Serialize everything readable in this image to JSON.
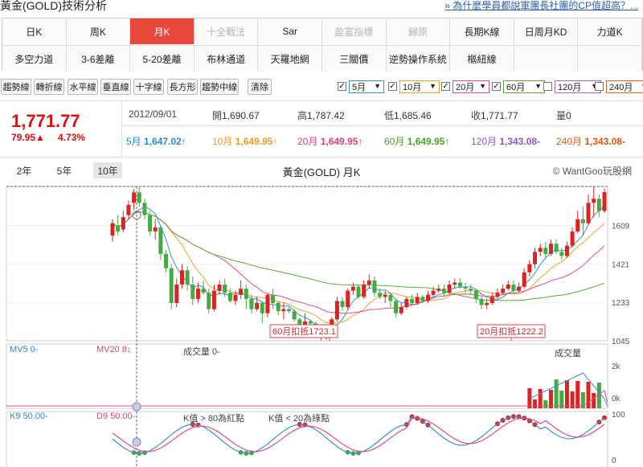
{
  "header": {
    "title": "黃金(GOLD)技術分析",
    "link": "» 為什麼學員都說軍團長社團的CP值超高？..."
  },
  "tabs": {
    "row1": [
      {
        "label": "日K",
        "state": "normal"
      },
      {
        "label": "周K",
        "state": "normal"
      },
      {
        "label": "月K",
        "state": "active"
      },
      {
        "label": "十全戰法",
        "state": "disabled"
      },
      {
        "label": "Sar",
        "state": "normal"
      },
      {
        "label": "盈富指標",
        "state": "disabled"
      },
      {
        "label": "歸原",
        "state": "disabled"
      },
      {
        "label": "長期K線",
        "state": "normal"
      },
      {
        "label": "日周月KD",
        "state": "normal"
      },
      {
        "label": "力道K",
        "state": "normal"
      }
    ],
    "row2": [
      {
        "label": "多空力道",
        "state": "normal"
      },
      {
        "label": "3-6差離",
        "state": "normal"
      },
      {
        "label": "5-20差離",
        "state": "normal"
      },
      {
        "label": "布林通道",
        "state": "normal"
      },
      {
        "label": "天羅地網",
        "state": "normal"
      },
      {
        "label": "三關價",
        "state": "normal"
      },
      {
        "label": "逆勢操作系統",
        "state": "normal"
      },
      {
        "label": "樞紐線",
        "state": "normal"
      },
      {
        "label": "",
        "state": "blank"
      },
      {
        "label": "",
        "state": "blank"
      }
    ]
  },
  "tools": [
    "趨勢線",
    "轉折線",
    "水平線",
    "垂直線",
    "十字線",
    "長方形",
    "趨勢中線",
    "清除"
  ],
  "ma_selectors": [
    {
      "label": "5月",
      "checked": true,
      "color": "#3a8fd6"
    },
    {
      "label": "10月",
      "checked": true,
      "color": "#f0a030"
    },
    {
      "label": "20月",
      "checked": true,
      "color": "#e0507a"
    },
    {
      "label": "60月",
      "checked": true,
      "color": "#5aaa3a"
    },
    {
      "label": "120月",
      "checked": false,
      "color": "#9a6ad0"
    },
    {
      "label": "240月",
      "checked": false,
      "color": "#e06a20"
    }
  ],
  "quote": {
    "price": "1,771.77",
    "change": "79.95▲",
    "percent": "4.73%",
    "date": "2012/09/01",
    "open_label": "開",
    "open": "1,690.67",
    "high_label": "高",
    "high": "1,787.42",
    "low_label": "低",
    "low": "1,685.46",
    "close_label": "收",
    "close": "1,771.77",
    "vol_label": "量",
    "vol": "0",
    "ma": [
      {
        "label": "5月",
        "value": "1,647.02↑",
        "color": "#2b87d0"
      },
      {
        "label": "10月",
        "value": "1,649.95↑",
        "color": "#f09a20"
      },
      {
        "label": "20月",
        "value": "1,649.95↑",
        "color": "#e0407a"
      },
      {
        "label": "60月",
        "value": "1,649.95↑",
        "color": "#4aa02a"
      },
      {
        "label": "120月",
        "value": "1,343.08-",
        "color": "#8a5ac0"
      },
      {
        "label": "240月",
        "value": "1,343.08-",
        "color": "#e05a10"
      }
    ]
  },
  "chart": {
    "ranges": [
      "2年",
      "5年",
      "10年"
    ],
    "active_range": "10年",
    "title": "黃金(GOLD) 月K",
    "credit": "© WantGoo玩股網",
    "yticks": [
      "1609",
      "1421",
      "1233",
      "1045"
    ],
    "annot1": "60月扣抵1723.1",
    "annot2": "20月扣抵1222.2"
  },
  "volume_panel": {
    "mv5": "MV5 0-",
    "mv20": "MV20 8↓",
    "vol_text": "成交量 0-",
    "vol_title": "成交量",
    "yticks": [
      "2k",
      "0k"
    ]
  },
  "kd_panel": {
    "k9": "K9 50.00-",
    "d9": "D9 50.00-",
    "rule1": "K值 > 80為紅點",
    "rule2": "K值 < 20為綠點",
    "yticks": [
      "100",
      "0"
    ]
  },
  "chart_data": {
    "type": "candlestick",
    "title": "黃金(GOLD) 月K",
    "ylim": [
      1045,
      1800
    ],
    "candles": [
      {
        "o": 1560,
        "c": 1620,
        "h": 1640,
        "l": 1530
      },
      {
        "o": 1610,
        "c": 1580,
        "h": 1660,
        "l": 1560
      },
      {
        "o": 1590,
        "c": 1650,
        "h": 1680,
        "l": 1575
      },
      {
        "o": 1660,
        "c": 1710,
        "h": 1730,
        "l": 1640
      },
      {
        "o": 1720,
        "c": 1771,
        "h": 1787,
        "l": 1686
      },
      {
        "o": 1771,
        "c": 1720,
        "h": 1795,
        "l": 1700
      },
      {
        "o": 1720,
        "c": 1660,
        "h": 1740,
        "l": 1640
      },
      {
        "o": 1660,
        "c": 1580,
        "h": 1680,
        "l": 1560
      },
      {
        "o": 1580,
        "c": 1600,
        "h": 1640,
        "l": 1540
      },
      {
        "o": 1600,
        "c": 1470,
        "h": 1610,
        "l": 1440
      },
      {
        "o": 1470,
        "c": 1400,
        "h": 1490,
        "l": 1380
      },
      {
        "o": 1400,
        "c": 1230,
        "h": 1420,
        "l": 1200
      },
      {
        "o": 1230,
        "c": 1320,
        "h": 1350,
        "l": 1210
      },
      {
        "o": 1320,
        "c": 1390,
        "h": 1420,
        "l": 1300
      },
      {
        "o": 1390,
        "c": 1320,
        "h": 1410,
        "l": 1290
      },
      {
        "o": 1320,
        "c": 1250,
        "h": 1360,
        "l": 1220
      },
      {
        "o": 1250,
        "c": 1300,
        "h": 1330,
        "l": 1230
      },
      {
        "o": 1300,
        "c": 1280,
        "h": 1340,
        "l": 1270
      },
      {
        "o": 1280,
        "c": 1200,
        "h": 1300,
        "l": 1180
      },
      {
        "o": 1200,
        "c": 1290,
        "h": 1320,
        "l": 1190
      },
      {
        "o": 1290,
        "c": 1320,
        "h": 1340,
        "l": 1270
      },
      {
        "o": 1320,
        "c": 1280,
        "h": 1350,
        "l": 1260
      },
      {
        "o": 1280,
        "c": 1240,
        "h": 1300,
        "l": 1230
      },
      {
        "o": 1240,
        "c": 1270,
        "h": 1290,
        "l": 1220
      },
      {
        "o": 1270,
        "c": 1300,
        "h": 1340,
        "l": 1250
      },
      {
        "o": 1300,
        "c": 1250,
        "h": 1320,
        "l": 1200
      },
      {
        "o": 1250,
        "c": 1200,
        "h": 1270,
        "l": 1180
      },
      {
        "o": 1200,
        "c": 1230,
        "h": 1260,
        "l": 1190
      },
      {
        "o": 1230,
        "c": 1180,
        "h": 1240,
        "l": 1130
      },
      {
        "o": 1180,
        "c": 1270,
        "h": 1280,
        "l": 1160
      },
      {
        "o": 1270,
        "c": 1230,
        "h": 1300,
        "l": 1200
      },
      {
        "o": 1230,
        "c": 1190,
        "h": 1240,
        "l": 1170
      },
      {
        "o": 1190,
        "c": 1200,
        "h": 1230,
        "l": 1150
      },
      {
        "o": 1200,
        "c": 1190,
        "h": 1210,
        "l": 1180
      },
      {
        "o": 1190,
        "c": 1150,
        "h": 1200,
        "l": 1140
      },
      {
        "o": 1150,
        "c": 1120,
        "h": 1160,
        "l": 1110
      },
      {
        "o": 1120,
        "c": 1140,
        "h": 1180,
        "l": 1100
      },
      {
        "o": 1140,
        "c": 1130,
        "h": 1150,
        "l": 1090
      },
      {
        "o": 1130,
        "c": 1070,
        "h": 1140,
        "l": 1060
      },
      {
        "o": 1070,
        "c": 1060,
        "h": 1090,
        "l": 1045
      },
      {
        "o": 1060,
        "c": 1090,
        "h": 1100,
        "l": 1050
      },
      {
        "o": 1090,
        "c": 1150,
        "h": 1160,
        "l": 1070
      },
      {
        "o": 1150,
        "c": 1240,
        "h": 1260,
        "l": 1140
      },
      {
        "o": 1240,
        "c": 1210,
        "h": 1260,
        "l": 1190
      },
      {
        "o": 1210,
        "c": 1290,
        "h": 1300,
        "l": 1200
      },
      {
        "o": 1290,
        "c": 1310,
        "h": 1330,
        "l": 1270
      },
      {
        "o": 1310,
        "c": 1260,
        "h": 1320,
        "l": 1250
      },
      {
        "o": 1260,
        "c": 1320,
        "h": 1340,
        "l": 1250
      },
      {
        "o": 1320,
        "c": 1340,
        "h": 1370,
        "l": 1300
      },
      {
        "o": 1340,
        "c": 1280,
        "h": 1360,
        "l": 1260
      },
      {
        "o": 1280,
        "c": 1260,
        "h": 1300,
        "l": 1250
      },
      {
        "o": 1260,
        "c": 1270,
        "h": 1290,
        "l": 1230
      },
      {
        "o": 1270,
        "c": 1240,
        "h": 1280,
        "l": 1210
      },
      {
        "o": 1240,
        "c": 1180,
        "h": 1250,
        "l": 1160
      },
      {
        "o": 1180,
        "c": 1210,
        "h": 1230,
        "l": 1170
      },
      {
        "o": 1210,
        "c": 1250,
        "h": 1260,
        "l": 1200
      },
      {
        "o": 1250,
        "c": 1230,
        "h": 1270,
        "l": 1220
      },
      {
        "o": 1230,
        "c": 1260,
        "h": 1280,
        "l": 1220
      },
      {
        "o": 1260,
        "c": 1240,
        "h": 1270,
        "l": 1230
      },
      {
        "o": 1240,
        "c": 1270,
        "h": 1290,
        "l": 1230
      },
      {
        "o": 1270,
        "c": 1290,
        "h": 1310,
        "l": 1260
      },
      {
        "o": 1290,
        "c": 1300,
        "h": 1320,
        "l": 1280
      },
      {
        "o": 1300,
        "c": 1280,
        "h": 1320,
        "l": 1260
      },
      {
        "o": 1280,
        "c": 1320,
        "h": 1340,
        "l": 1270
      },
      {
        "o": 1320,
        "c": 1330,
        "h": 1350,
        "l": 1300
      },
      {
        "o": 1330,
        "c": 1310,
        "h": 1350,
        "l": 1300
      },
      {
        "o": 1310,
        "c": 1300,
        "h": 1330,
        "l": 1280
      },
      {
        "o": 1300,
        "c": 1290,
        "h": 1320,
        "l": 1270
      },
      {
        "o": 1290,
        "c": 1250,
        "h": 1300,
        "l": 1230
      },
      {
        "o": 1250,
        "c": 1220,
        "h": 1260,
        "l": 1200
      },
      {
        "o": 1220,
        "c": 1230,
        "h": 1250,
        "l": 1200
      },
      {
        "o": 1230,
        "c": 1260,
        "h": 1280,
        "l": 1220
      },
      {
        "o": 1260,
        "c": 1280,
        "h": 1300,
        "l": 1250
      },
      {
        "o": 1280,
        "c": 1300,
        "h": 1320,
        "l": 1270
      },
      {
        "o": 1300,
        "c": 1320,
        "h": 1340,
        "l": 1290
      },
      {
        "o": 1320,
        "c": 1290,
        "h": 1340,
        "l": 1280
      },
      {
        "o": 1290,
        "c": 1310,
        "h": 1330,
        "l": 1280
      },
      {
        "o": 1310,
        "c": 1380,
        "h": 1400,
        "l": 1300
      },
      {
        "o": 1380,
        "c": 1420,
        "h": 1440,
        "l": 1360
      },
      {
        "o": 1420,
        "c": 1480,
        "h": 1500,
        "l": 1400
      },
      {
        "o": 1480,
        "c": 1500,
        "h": 1520,
        "l": 1460
      },
      {
        "o": 1500,
        "c": 1470,
        "h": 1530,
        "l": 1450
      },
      {
        "o": 1470,
        "c": 1520,
        "h": 1540,
        "l": 1460
      },
      {
        "o": 1520,
        "c": 1480,
        "h": 1540,
        "l": 1470
      },
      {
        "o": 1480,
        "c": 1460,
        "h": 1500,
        "l": 1440
      },
      {
        "o": 1460,
        "c": 1510,
        "h": 1530,
        "l": 1450
      },
      {
        "o": 1510,
        "c": 1580,
        "h": 1600,
        "l": 1500
      },
      {
        "o": 1580,
        "c": 1640,
        "h": 1680,
        "l": 1570
      },
      {
        "o": 1640,
        "c": 1620,
        "h": 1700,
        "l": 1560
      },
      {
        "o": 1620,
        "c": 1720,
        "h": 1760,
        "l": 1610
      },
      {
        "o": 1720,
        "c": 1740,
        "h": 1800,
        "l": 1650
      },
      {
        "o": 1740,
        "c": 1680,
        "h": 1760,
        "l": 1650
      },
      {
        "o": 1680,
        "c": 1772,
        "h": 1790,
        "l": 1670
      }
    ],
    "ma_series": [
      {
        "name": "5月",
        "color": "#3a8fd6"
      },
      {
        "name": "10月",
        "color": "#f0a030"
      },
      {
        "name": "20月",
        "color": "#e0507a"
      },
      {
        "name": "60月",
        "color": "#5aaa3a"
      }
    ]
  }
}
